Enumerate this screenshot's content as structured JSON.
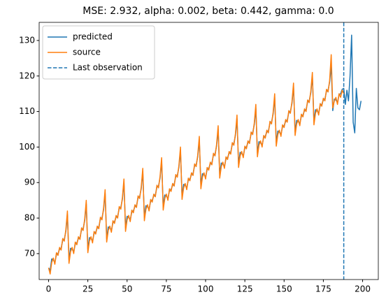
{
  "chart_data": {
    "type": "line",
    "title": "MSE: 2.932, alpha: 0.002, beta: 0.442, gamma: 0.0",
    "x": [
      0,
      1,
      2,
      3,
      4,
      5,
      6,
      7,
      8,
      9,
      10,
      11,
      12,
      13,
      14,
      15,
      16,
      17,
      18,
      19,
      20,
      21,
      22,
      23,
      24,
      25,
      26,
      27,
      28,
      29,
      30,
      31,
      32,
      33,
      34,
      35,
      36,
      37,
      38,
      39,
      40,
      41,
      42,
      43,
      44,
      45,
      46,
      47,
      48,
      49,
      50,
      51,
      52,
      53,
      54,
      55,
      56,
      57,
      58,
      59,
      60,
      61,
      62,
      63,
      64,
      65,
      66,
      67,
      68,
      69,
      70,
      71,
      72,
      73,
      74,
      75,
      76,
      77,
      78,
      79,
      80,
      81,
      82,
      83,
      84,
      85,
      86,
      87,
      88,
      89,
      90,
      91,
      92,
      93,
      94,
      95,
      96,
      97,
      98,
      99,
      100,
      101,
      102,
      103,
      104,
      105,
      106,
      107,
      108,
      109,
      110,
      111,
      112,
      113,
      114,
      115,
      116,
      117,
      118,
      119,
      120,
      121,
      122,
      123,
      124,
      125,
      126,
      127,
      128,
      129,
      130,
      131,
      132,
      133,
      134,
      135,
      136,
      137,
      138,
      139,
      140,
      141,
      142,
      143,
      144,
      145,
      146,
      147,
      148,
      149,
      150,
      151,
      152,
      153,
      154,
      155,
      156,
      157,
      158,
      159,
      160,
      161,
      162,
      163,
      164,
      165,
      166,
      167,
      168,
      169,
      170,
      171,
      172,
      173,
      174,
      175,
      176,
      177,
      178,
      179,
      180,
      181,
      182,
      183,
      184,
      185,
      186,
      187,
      188,
      189,
      190,
      191,
      192,
      193,
      194,
      195,
      196,
      197,
      198,
      199
    ],
    "series": [
      {
        "name": "predicted",
        "color": "#1f77b4",
        "values": [
          66,
          65.25,
          68.5,
          68.25,
          67.5,
          69.75,
          70,
          71.25,
          71.5,
          73.75,
          74,
          76.25,
          81,
          68.25,
          71.5,
          71.25,
          70.5,
          72.75,
          73,
          74.25,
          74.5,
          76.75,
          77,
          79.25,
          84,
          71.25,
          74.5,
          74.25,
          73.5,
          75.75,
          76,
          77.25,
          77.5,
          79.75,
          80,
          82.25,
          87,
          74.25,
          77.5,
          77.25,
          76.5,
          78.75,
          79,
          80.25,
          80.5,
          82.75,
          83,
          85.25,
          90,
          77.25,
          80.5,
          80.25,
          79.5,
          81.75,
          82,
          83.25,
          83.5,
          85.75,
          86,
          88.25,
          93,
          80.25,
          83.5,
          83.25,
          82.5,
          84.75,
          85,
          86.25,
          86.5,
          88.75,
          89,
          91.25,
          96,
          83.25,
          86.5,
          86.25,
          85.5,
          87.75,
          88,
          89.25,
          89.5,
          91.75,
          92,
          94.25,
          99,
          86.25,
          89.5,
          89.25,
          88.5,
          90.75,
          91,
          92.25,
          92.5,
          94.75,
          95,
          97.25,
          102,
          89.25,
          92.5,
          92.25,
          91.5,
          93.75,
          94,
          95.25,
          95.5,
          97.75,
          98,
          100.25,
          105,
          92.25,
          95.5,
          95.25,
          94.5,
          96.75,
          97,
          98.25,
          98.5,
          100.75,
          101,
          103.25,
          108,
          95.25,
          98.5,
          98.25,
          97.5,
          99.75,
          100,
          101.25,
          101.5,
          103.75,
          104,
          106.25,
          111,
          98.25,
          101.5,
          101.25,
          100.5,
          102.75,
          103,
          104.25,
          104.5,
          106.75,
          107,
          109.25,
          114,
          101.25,
          104.5,
          104.25,
          103.5,
          105.75,
          106,
          107.25,
          107.5,
          109.75,
          110,
          112.25,
          117,
          104.25,
          107.5,
          107.25,
          106.5,
          108.75,
          109,
          110.25,
          110.5,
          112.75,
          113,
          115.25,
          120,
          107.25,
          110.5,
          110.25,
          109.5,
          111.75,
          112,
          113.25,
          113.5,
          115.75,
          116,
          118.25,
          123,
          110.25,
          113.5,
          113.25,
          112.5,
          114.75,
          115,
          116.25,
          116.5,
          112,
          116,
          113,
          120,
          131.5,
          107,
          104,
          116.5,
          111,
          110.5,
          113
        ]
      },
      {
        "name": "source",
        "color": "#ff7f0e",
        "values": [
          66,
          64.25,
          67.5,
          68.75,
          67,
          70.25,
          69.5,
          71.75,
          71,
          74.25,
          73.5,
          76.75,
          82,
          67.25,
          70.5,
          71.75,
          70,
          73.25,
          72.5,
          74.75,
          74,
          77.25,
          76.5,
          79.75,
          85,
          70.25,
          73.5,
          74.75,
          73,
          76.25,
          75.5,
          77.75,
          77,
          80.25,
          79.5,
          82.75,
          88,
          73.25,
          76.5,
          77.75,
          76,
          79.25,
          78.5,
          80.75,
          80,
          83.25,
          82.5,
          85.75,
          91,
          76.25,
          79.5,
          80.75,
          79,
          82.25,
          81.5,
          83.75,
          83,
          86.25,
          85.5,
          88.75,
          94,
          79.25,
          82.5,
          83.75,
          82,
          85.25,
          84.5,
          86.75,
          86,
          89.25,
          88.5,
          91.75,
          97,
          82.25,
          85.5,
          86.75,
          85,
          88.25,
          87.5,
          89.75,
          89,
          92.25,
          91.5,
          94.75,
          100,
          85.25,
          88.5,
          89.75,
          88,
          91.25,
          90.5,
          92.75,
          92,
          95.25,
          94.5,
          97.75,
          103,
          88.25,
          91.5,
          92.75,
          91,
          94.25,
          93.5,
          95.75,
          95,
          98.25,
          97.5,
          100.75,
          106,
          91.25,
          94.5,
          95.75,
          94,
          97.25,
          96.5,
          98.75,
          98,
          101.25,
          100.5,
          103.75,
          109,
          94.25,
          97.5,
          98.75,
          97,
          100.25,
          99.5,
          101.75,
          101,
          104.25,
          103.5,
          106.75,
          112,
          97.25,
          100.5,
          101.75,
          100,
          103.25,
          102.5,
          104.75,
          104,
          107.25,
          106.5,
          109.75,
          115,
          100.25,
          103.5,
          104.75,
          103,
          106.25,
          105.5,
          107.75,
          107,
          110.25,
          109.5,
          112.75,
          118,
          103.25,
          106.5,
          107.75,
          106,
          109.25,
          108.5,
          110.75,
          110,
          113.25,
          112.5,
          115.75,
          121,
          106.25,
          109.5,
          110.75,
          109,
          112.25,
          111.5,
          113.75,
          113,
          116.25,
          115.5,
          118.75,
          126,
          111,
          113,
          114,
          112,
          115,
          114,
          116,
          115,
          null,
          null,
          null,
          null,
          null,
          null,
          null,
          null,
          null,
          null,
          null
        ]
      }
    ],
    "vlines": [
      {
        "name": "Last observation",
        "x": 188,
        "color": "#1f77b4",
        "dashed": true
      }
    ],
    "xlim": [
      -6,
      210
    ],
    "ylim": [
      62.7,
      135.1
    ],
    "xticks": [
      0,
      25,
      50,
      75,
      100,
      125,
      150,
      175,
      200
    ],
    "yticks": [
      70,
      80,
      90,
      100,
      110,
      120,
      130
    ],
    "legend": "upper left",
    "grid": false
  }
}
